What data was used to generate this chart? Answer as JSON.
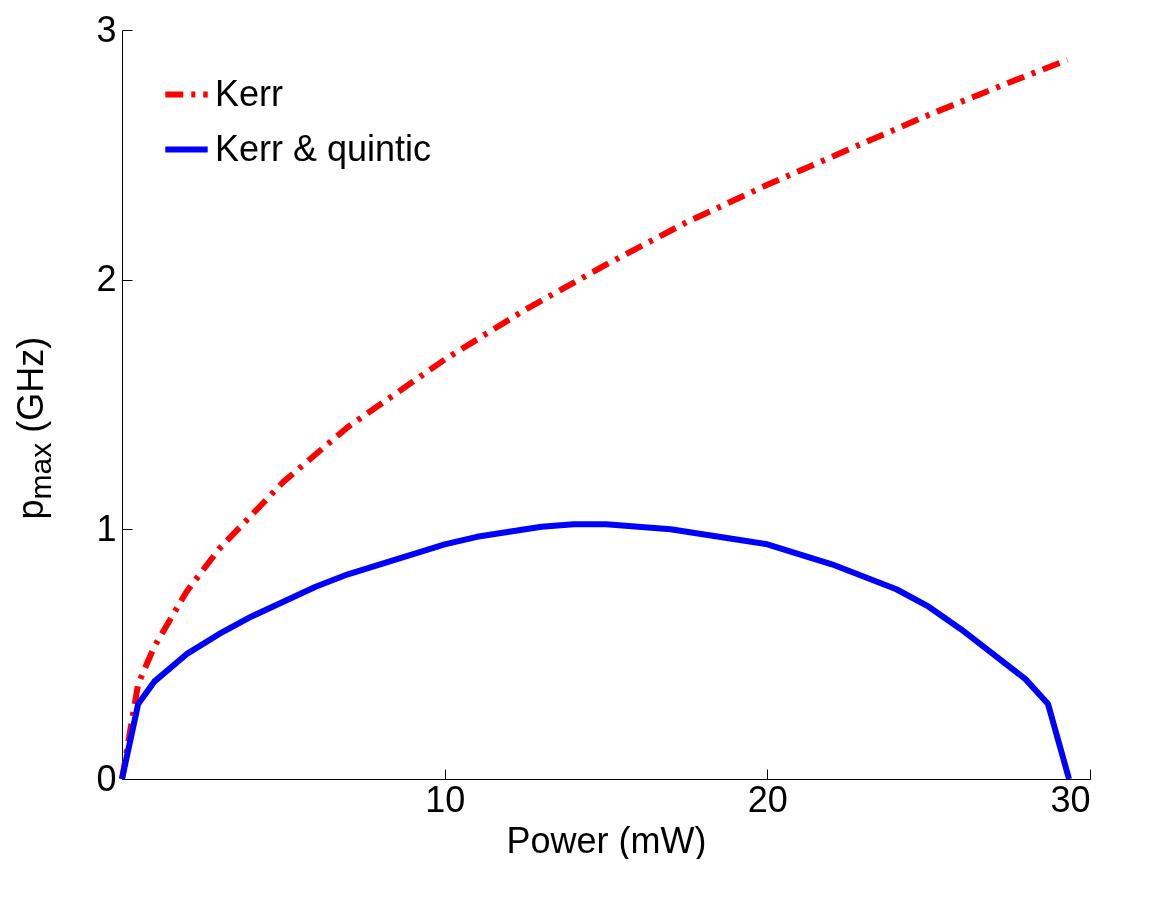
{
  "chart_data": {
    "type": "line",
    "xlabel": "Power (mW)",
    "ylabel": "p$_{max}$ (GHz)",
    "xlim": [
      0,
      30
    ],
    "ylim": [
      0,
      3
    ],
    "xticks": [
      10,
      20,
      30
    ],
    "yticks": [
      0,
      1,
      2,
      3
    ],
    "grid": false,
    "legend": "top left",
    "marker": "none",
    "series": [
      {
        "name": "Kerr",
        "color": "#ff0000",
        "line_style": "dashdot",
        "x": [
          0,
          0.5,
          1,
          2,
          3,
          5,
          7,
          10,
          12.5,
          15,
          17.5,
          20,
          22.5,
          25,
          27.5,
          29.3
        ],
        "values": [
          0,
          0.38,
          0.53,
          0.75,
          0.92,
          1.19,
          1.41,
          1.68,
          1.88,
          2.06,
          2.23,
          2.38,
          2.52,
          2.66,
          2.79,
          2.88
        ]
      },
      {
        "name": "Kerr & quintic",
        "color": "#0000ff",
        "line_style": "solid",
        "x": [
          0,
          0.5,
          1,
          2,
          3,
          4,
          5,
          6,
          7,
          8,
          9,
          10,
          11,
          12,
          13,
          14,
          15,
          16,
          17,
          18,
          19,
          20,
          21,
          22,
          23,
          24,
          25,
          26,
          27,
          28,
          28.7,
          29.35
        ],
        "values": [
          0,
          0.3,
          0.39,
          0.5,
          0.58,
          0.65,
          0.71,
          0.77,
          0.82,
          0.86,
          0.9,
          0.94,
          0.97,
          0.99,
          1.01,
          1.02,
          1.02,
          1.01,
          1.0,
          0.98,
          0.96,
          0.94,
          0.9,
          0.86,
          0.81,
          0.76,
          0.69,
          0.6,
          0.5,
          0.4,
          0.3,
          0
        ]
      }
    ]
  }
}
